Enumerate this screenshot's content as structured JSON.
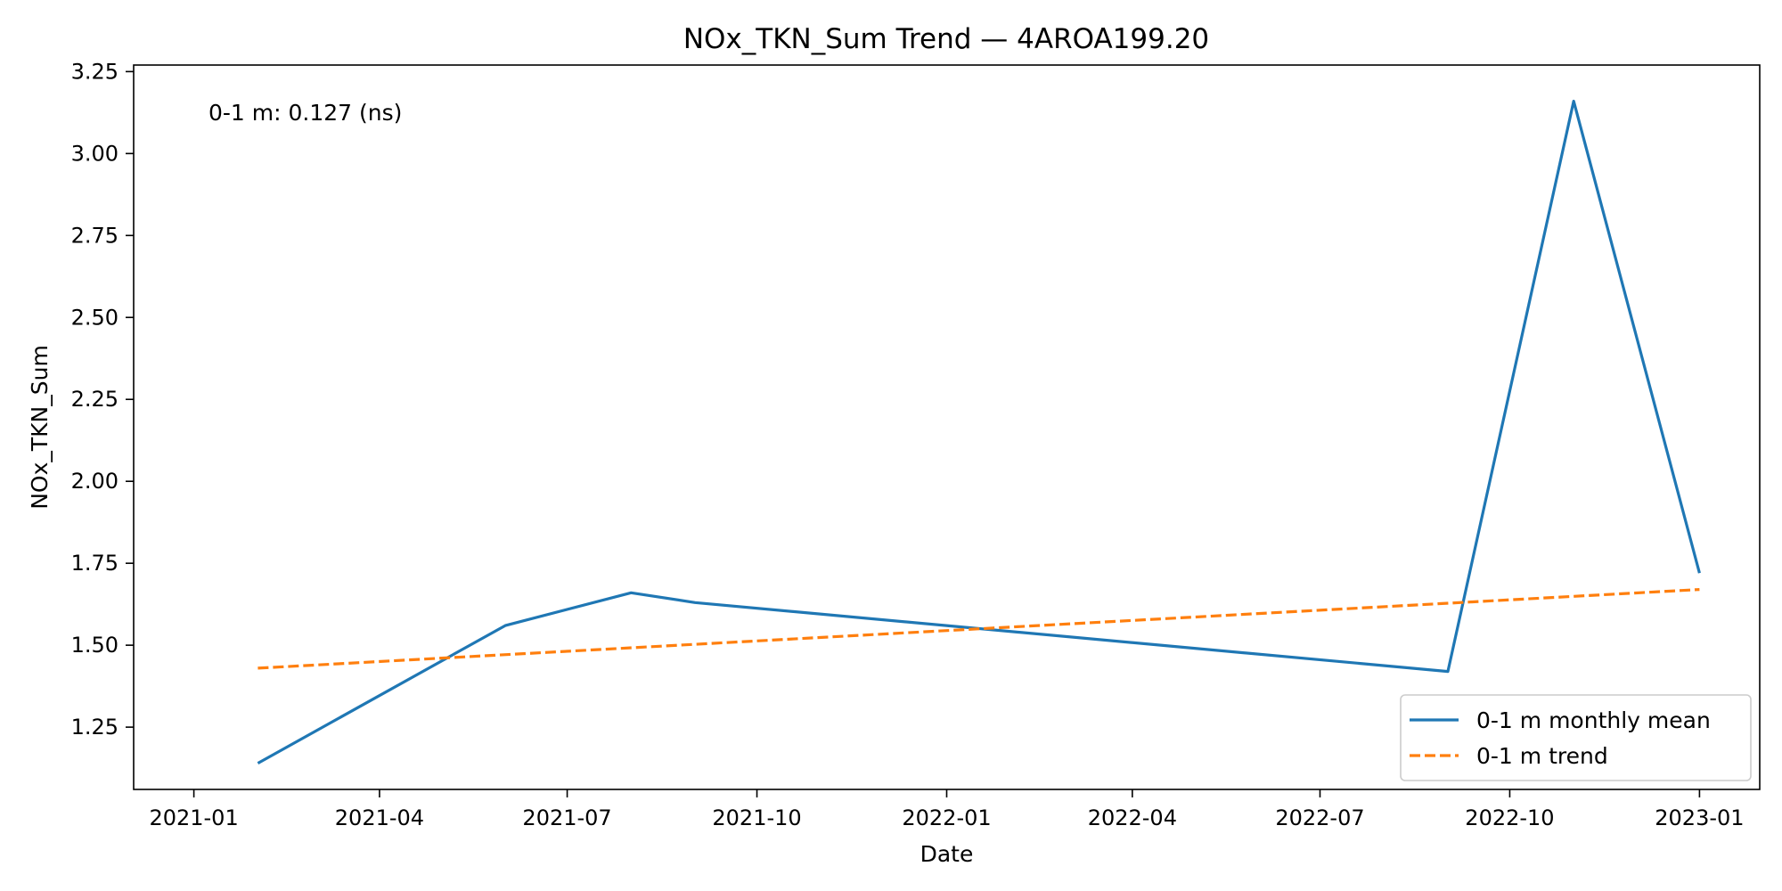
{
  "chart_data": {
    "type": "line",
    "title": "NOx_TKN_Sum Trend — 4AROA199.20",
    "xlabel": "Date",
    "ylabel": "NOx_TKN_Sum",
    "x_type": "date",
    "xlim": [
      "2021-01-01",
      "2023-01-01"
    ],
    "ylim": [
      1.06,
      3.27
    ],
    "x_ticks": [
      "2021-01",
      "2021-04",
      "2021-07",
      "2021-10",
      "2022-01",
      "2022-04",
      "2022-07",
      "2022-10",
      "2023-01"
    ],
    "y_ticks": [
      "1.25",
      "1.50",
      "1.75",
      "2.00",
      "2.25",
      "2.50",
      "2.75",
      "3.00",
      "3.25"
    ],
    "grid": false,
    "legend_position": "lower-right",
    "annotation": "0-1 m: 0.127 (ns)",
    "series": [
      {
        "name": "0-1 m monthly mean",
        "style": "solid",
        "color": "#1f77b4",
        "x": [
          "2021-02-01",
          "2021-06-01",
          "2021-08-01",
          "2021-09-01",
          "2022-09-01",
          "2022-11-01",
          "2023-01-01"
        ],
        "y": [
          1.14,
          1.56,
          1.66,
          1.63,
          1.42,
          3.16,
          1.72
        ]
      },
      {
        "name": "0-1 m trend",
        "style": "dashed",
        "color": "#ff7f0e",
        "x": [
          "2021-02-01",
          "2023-01-01"
        ],
        "y": [
          1.43,
          1.67
        ]
      }
    ]
  }
}
